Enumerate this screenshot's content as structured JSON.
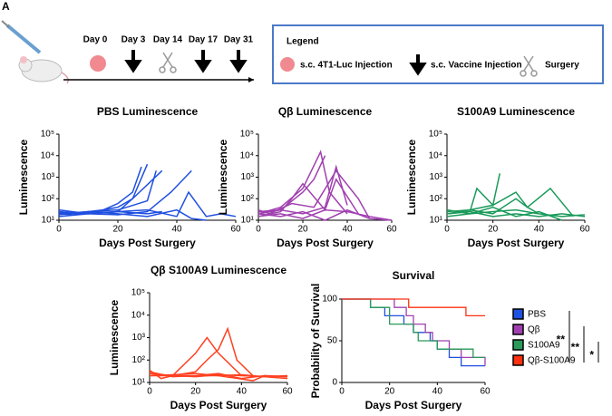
{
  "panel_label": "A",
  "timeline": {
    "days": [
      "Day 0",
      "Day 3",
      "Day 14",
      "Day 17",
      "Day 31"
    ],
    "legend": {
      "title": "Legend",
      "items": [
        "s.c. 4T1-Luc Injection",
        "s.c. Vaccine Injection",
        "Surgery"
      ]
    }
  },
  "chart_data": [
    {
      "type": "line",
      "title": "PBS Luminescence",
      "x_label": "Days Post Surgery",
      "y_label": "Luminescence",
      "log_scale": true,
      "color": "#1f4fe0",
      "xlim": [
        0,
        60
      ],
      "xticks": [
        0,
        20,
        40,
        60
      ],
      "ylim": [
        10,
        100000
      ],
      "yticks": [
        {
          "value": 10,
          "label": "10¹"
        },
        {
          "value": 100,
          "label": "10²"
        },
        {
          "value": 1000,
          "label": "10³"
        },
        {
          "value": 10000,
          "label": "10⁴"
        },
        {
          "value": 100000,
          "label": "10⁵"
        }
      ],
      "series": [
        {
          "x": [
            0,
            5,
            10,
            15,
            20,
            25,
            28
          ],
          "values": [
            20,
            18,
            25,
            30,
            60,
            200,
            3000
          ]
        },
        {
          "x": [
            0,
            5,
            10,
            15,
            20,
            25,
            30
          ],
          "values": [
            25,
            22,
            20,
            30,
            40,
            100,
            4000
          ]
        },
        {
          "x": [
            0,
            10,
            20,
            30,
            33
          ],
          "values": [
            20,
            25,
            30,
            80,
            2000
          ]
        },
        {
          "x": [
            0,
            10,
            20,
            25,
            35
          ],
          "values": [
            15,
            20,
            25,
            100,
            2000
          ]
        },
        {
          "x": [
            0,
            10,
            20,
            30,
            38,
            45
          ],
          "values": [
            22,
            20,
            18,
            25,
            200,
            2000
          ]
        },
        {
          "x": [
            0,
            10,
            20,
            30,
            40,
            44,
            50,
            55,
            60
          ],
          "values": [
            20,
            22,
            25,
            30,
            15,
            200,
            15,
            20,
            15
          ]
        },
        {
          "x": [
            0,
            10,
            20,
            30,
            40,
            45,
            50
          ],
          "values": [
            18,
            25,
            20,
            15,
            30,
            12,
            10
          ]
        },
        {
          "x": [
            0,
            10,
            20,
            30,
            35
          ],
          "values": [
            30,
            20,
            25,
            20,
            25
          ]
        }
      ]
    },
    {
      "type": "line",
      "title": "Qβ Luminescence",
      "x_label": "Days Post Surgery",
      "y_label": "Luminescence",
      "log_scale": true,
      "color": "#a040b0",
      "xlim": [
        0,
        60
      ],
      "xticks": [
        0,
        20,
        40,
        60
      ],
      "ylim": [
        10,
        100000
      ],
      "yticks": [
        {
          "value": 10,
          "label": "10¹"
        },
        {
          "value": 100,
          "label": "10²"
        },
        {
          "value": 1000,
          "label": "10³"
        },
        {
          "value": 10000,
          "label": "10⁴"
        },
        {
          "value": 100000,
          "label": "10⁵"
        }
      ],
      "series": [
        {
          "x": [
            0,
            10,
            20,
            25,
            30
          ],
          "values": [
            20,
            30,
            200,
            800,
            10000
          ]
        },
        {
          "x": [
            0,
            10,
            20,
            28,
            32,
            40
          ],
          "values": [
            20,
            40,
            300,
            15000,
            200,
            20
          ]
        },
        {
          "x": [
            0,
            10,
            15,
            20,
            30,
            35,
            45
          ],
          "values": [
            15,
            25,
            100,
            500,
            30,
            800,
            20
          ]
        },
        {
          "x": [
            0,
            5,
            15,
            25,
            35,
            45,
            50
          ],
          "values": [
            30,
            20,
            60,
            40,
            2000,
            100,
            12
          ]
        },
        {
          "x": [
            0,
            10,
            20,
            30,
            40,
            50,
            60
          ],
          "values": [
            20,
            15,
            25,
            10,
            30,
            12,
            10
          ]
        },
        {
          "x": [
            0,
            10,
            20,
            30,
            35,
            40
          ],
          "values": [
            25,
            30,
            20,
            40,
            3000,
            50
          ]
        },
        {
          "x": [
            0,
            10,
            20,
            30,
            40,
            50,
            60
          ],
          "values": [
            15,
            20,
            12,
            30,
            25,
            15,
            10
          ]
        }
      ]
    },
    {
      "type": "line",
      "title": "S100A9 Luminescence",
      "x_label": "Days Post Surgery",
      "y_label": "Luminescence",
      "log_scale": true,
      "color": "#1a9a5a",
      "xlim": [
        0,
        60
      ],
      "xticks": [
        0,
        20,
        40,
        60
      ],
      "ylim": [
        10,
        100000
      ],
      "yticks": [
        {
          "value": 10,
          "label": "10¹"
        },
        {
          "value": 100,
          "label": "10²"
        },
        {
          "value": 1000,
          "label": "10³"
        },
        {
          "value": 10000,
          "label": "10⁴"
        },
        {
          "value": 100000,
          "label": "10⁵"
        }
      ],
      "series": [
        {
          "x": [
            0,
            10,
            13,
            20,
            23
          ],
          "values": [
            20,
            25,
            300,
            50,
            1500
          ]
        },
        {
          "x": [
            0,
            10,
            20,
            30,
            35,
            40
          ],
          "values": [
            20,
            30,
            50,
            200,
            40,
            20
          ]
        },
        {
          "x": [
            0,
            10,
            20,
            30,
            35,
            45,
            55
          ],
          "values": [
            25,
            30,
            20,
            100,
            40,
            300,
            15
          ]
        },
        {
          "x": [
            0,
            10,
            20,
            30,
            40,
            50,
            60
          ],
          "values": [
            15,
            20,
            25,
            30,
            20,
            15,
            18
          ]
        },
        {
          "x": [
            0,
            10,
            20,
            30,
            40,
            50
          ],
          "values": [
            30,
            20,
            40,
            15,
            25,
            10
          ]
        },
        {
          "x": [
            0,
            10,
            20,
            30,
            40,
            50,
            60
          ],
          "values": [
            20,
            25,
            15,
            20,
            15,
            20,
            15
          ]
        }
      ]
    },
    {
      "type": "line",
      "title": "Qβ S100A9 Luminescence",
      "x_label": "Days Post Surgery",
      "y_label": "Luminescence",
      "log_scale": true,
      "color": "#ff4020",
      "xlim": [
        0,
        60
      ],
      "xticks": [
        0,
        20,
        40,
        60
      ],
      "ylim": [
        10,
        100000
      ],
      "yticks": [
        {
          "value": 10,
          "label": "10¹"
        },
        {
          "value": 100,
          "label": "10²"
        },
        {
          "value": 1000,
          "label": "10³"
        },
        {
          "value": 10000,
          "label": "10⁴"
        },
        {
          "value": 100000,
          "label": "10⁵"
        }
      ],
      "series": [
        {
          "x": [
            0,
            10,
            20,
            25,
            30,
            34,
            38,
            45
          ],
          "values": [
            25,
            20,
            30,
            100,
            300,
            2500,
            100,
            20
          ]
        },
        {
          "x": [
            0,
            10,
            20,
            25,
            30,
            40
          ],
          "values": [
            20,
            20,
            200,
            1000,
            200,
            20
          ]
        },
        {
          "x": [
            0,
            10,
            20,
            30,
            40,
            50,
            60
          ],
          "values": [
            25,
            20,
            18,
            22,
            20,
            18,
            20
          ]
        },
        {
          "x": [
            0,
            10,
            20,
            30,
            40,
            50,
            60
          ],
          "values": [
            30,
            18,
            20,
            25,
            15,
            20,
            18
          ]
        },
        {
          "x": [
            0,
            10,
            20,
            30,
            40,
            50,
            60
          ],
          "values": [
            20,
            22,
            25,
            20,
            22,
            18,
            15
          ]
        },
        {
          "x": [
            0,
            5,
            10,
            20,
            30,
            45,
            50,
            60
          ],
          "values": [
            35,
            15,
            20,
            20,
            20,
            12,
            20,
            18
          ]
        }
      ]
    },
    {
      "type": "step",
      "title": "Survival",
      "x_label": "Days Post Surgery",
      "y_label": "Probability of Survival",
      "log_scale": false,
      "xlim": [
        0,
        60
      ],
      "xticks": [
        0,
        20,
        40,
        60
      ],
      "ylim": [
        0,
        100
      ],
      "yticks": [
        0,
        50,
        100
      ],
      "series": [
        {
          "name": "PBS",
          "color": "#2050e0",
          "x": [
            0,
            12,
            18,
            26,
            30,
            37,
            40,
            45,
            50,
            60
          ],
          "values": [
            100,
            90,
            80,
            70,
            60,
            50,
            40,
            30,
            20,
            20
          ]
        },
        {
          "name": "Qβ",
          "color": "#a040b0",
          "x": [
            0,
            22,
            27,
            30,
            35,
            38,
            45,
            50,
            60
          ],
          "values": [
            100,
            90,
            80,
            70,
            60,
            50,
            40,
            30,
            20
          ]
        },
        {
          "name": "S100A9",
          "color": "#2a9a5a",
          "x": [
            0,
            12,
            20,
            30,
            32,
            40,
            55,
            60
          ],
          "values": [
            100,
            90,
            70,
            60,
            50,
            40,
            30,
            30
          ]
        },
        {
          "name": "Qβ-S100A9",
          "color": "#ff3010",
          "x": [
            0,
            28,
            52,
            60
          ],
          "values": [
            100,
            90,
            80,
            80
          ]
        }
      ],
      "annotations": [
        "**",
        "**",
        "*"
      ]
    }
  ]
}
